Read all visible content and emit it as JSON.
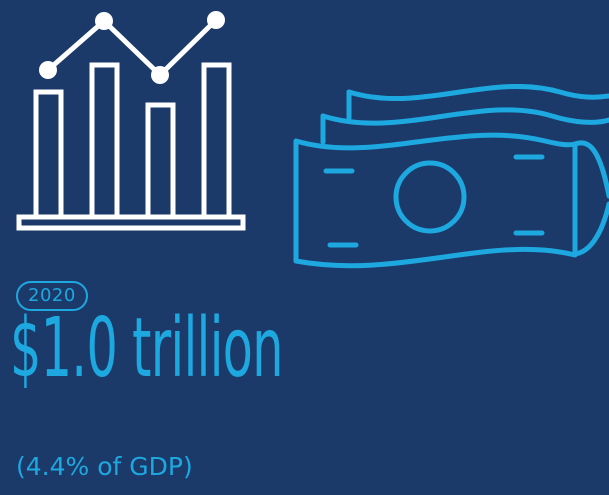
{
  "icons": {
    "chart": "bar-line-chart-icon",
    "money": "banknotes-icon"
  },
  "colors": {
    "background": "#1b3a6a",
    "accent": "#1da8e0",
    "chart_icon": "#ffffff"
  },
  "stat": {
    "year": "2020",
    "amount": "$1.0 trillion",
    "gdp_note": "(4.4% of GDP)"
  }
}
